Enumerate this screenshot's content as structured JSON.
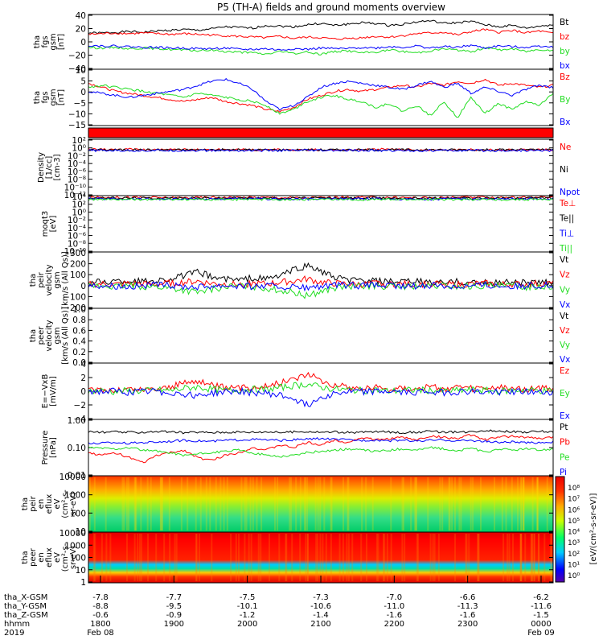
{
  "title": "P5 (TH-A) fields and ground moments overview",
  "colors": {
    "black": "#000000",
    "red": "#ff0000",
    "green": "#22dd22",
    "blue": "#0000ff"
  },
  "chart_data": [
    {
      "type": "line",
      "ylabel": [
        "tha",
        "fgs",
        "gsm",
        "[nT]"
      ],
      "ylim": [
        -40,
        40
      ],
      "yticks": [
        "40",
        "20",
        "0",
        "−20",
        "−40"
      ],
      "series": [
        {
          "name": "Bt",
          "color": "black",
          "values": [
            13,
            13,
            14,
            15,
            14,
            16,
            17,
            18,
            17,
            19,
            22,
            21,
            20,
            24,
            23,
            22,
            25,
            27,
            24,
            26,
            28,
            27,
            24,
            26,
            29,
            31,
            27,
            28,
            30,
            25,
            22,
            24,
            20,
            23,
            25
          ]
        },
        {
          "name": "bz",
          "color": "red",
          "values": [
            11,
            12,
            13,
            12,
            13,
            12,
            11,
            12,
            11,
            10,
            9,
            8,
            7,
            6,
            8,
            5,
            7,
            6,
            4,
            5,
            6,
            8,
            7,
            9,
            12,
            13,
            14,
            10,
            15,
            18,
            14,
            17,
            13,
            16,
            12
          ]
        },
        {
          "name": "by",
          "color": "green",
          "values": [
            -8,
            -9,
            -8,
            -10,
            -9,
            -10,
            -11,
            -12,
            -13,
            -12,
            -14,
            -15,
            -16,
            -18,
            -14,
            -17,
            -15,
            -18,
            -14,
            -13,
            -16,
            -15,
            -12,
            -14,
            -16,
            -13,
            -10,
            -12,
            -15,
            -8,
            -12,
            -10,
            -14,
            -11,
            -12
          ]
        },
        {
          "name": "bx",
          "color": "blue",
          "values": [
            -5,
            -6,
            -6,
            -7,
            -8,
            -8,
            -9,
            -9,
            -10,
            -10,
            -9,
            -11,
            -11,
            -10,
            -12,
            -10,
            -11,
            -9,
            -10,
            -10,
            -8,
            -9,
            -7,
            -8,
            -6,
            -9,
            -7,
            -8,
            -5,
            -9,
            -6,
            -7,
            -8,
            -6,
            -7
          ]
        }
      ]
    },
    {
      "type": "line",
      "ylabel": [
        "tha",
        "fgs",
        "gsm",
        "[nT]"
      ],
      "ylim": [
        -18,
        10
      ],
      "yticks": [
        "10",
        "5",
        "0",
        "−5",
        "−10",
        "−15"
      ],
      "series": [
        {
          "name": "Bz",
          "color": "red",
          "values": [
            3,
            1,
            -1,
            -2,
            -3,
            -4,
            -5,
            -6,
            -5,
            -4,
            -6,
            -7,
            -8,
            -10,
            -11,
            -9,
            -5,
            -3,
            -1,
            0,
            -1,
            0,
            1,
            2,
            1,
            3,
            2,
            4,
            3,
            5,
            2,
            3,
            2,
            1,
            2
          ]
        },
        {
          "name": "By",
          "color": "green",
          "values": [
            1,
            2,
            1,
            0,
            -1,
            -2,
            -3,
            -4,
            -2,
            -3,
            -4,
            -5,
            -6,
            -8,
            -12,
            -10,
            -6,
            -4,
            -3,
            -5,
            -6,
            -9,
            -7,
            -11,
            -8,
            -13,
            -6,
            -14,
            -4,
            -12,
            -7,
            -10,
            -6,
            -8,
            -2
          ]
        },
        {
          "name": "Bx",
          "color": "blue",
          "values": [
            -1,
            -2,
            -3,
            -4,
            -3,
            -2,
            -1,
            0,
            2,
            4,
            5,
            3,
            0,
            -6,
            -10,
            -8,
            -4,
            1,
            3,
            4,
            3,
            2,
            1,
            0,
            2,
            4,
            1,
            3,
            -2,
            1,
            -1,
            -3,
            0,
            2,
            1
          ]
        }
      ]
    },
    {
      "type": "heatmap",
      "ylabel": [],
      "note": "flag bar"
    },
    {
      "type": "line",
      "ylabel": [
        "Density",
        "[1/cc]",
        "[cm-3]"
      ],
      "ylim": [
        -12,
        3
      ],
      "yticks": [
        "10²",
        "10⁰",
        "10⁻²",
        "10⁻⁴",
        "10⁻⁶",
        "10⁻⁸",
        "10⁻¹⁰",
        "10⁻¹²"
      ],
      "series": [
        {
          "name": "Ne",
          "color": "red",
          "values": [
            0.3,
            0.3,
            0.2,
            0.3,
            0.2,
            0.2,
            0.2,
            0.3,
            0.2,
            0.2,
            0.2,
            0.2
          ]
        },
        {
          "name": "Ni",
          "color": "black",
          "values": [
            0.2,
            0.2,
            0.2,
            0.2,
            0.2,
            0.2,
            0.2,
            0.2,
            0.2,
            0.2,
            0.2,
            0.2
          ]
        },
        {
          "name": "Npot",
          "color": "blue",
          "values": [
            0,
            0,
            0,
            0,
            0,
            0,
            0,
            0,
            0,
            0,
            0,
            0
          ]
        }
      ]
    },
    {
      "type": "line",
      "ylabel": [
        "moqt3",
        "[eV]"
      ],
      "ylim": [
        -12,
        4
      ],
      "yticks": [
        "10⁴",
        "10²",
        "10⁰",
        "10⁻²",
        "10⁻⁴",
        "10⁻⁶",
        "10⁻⁸",
        "10⁻¹⁰"
      ],
      "series": [
        {
          "name": "Te⊥",
          "color": "red",
          "values": [
            3.5,
            3.5,
            3.4,
            3.5,
            3.5,
            3.4,
            3.5,
            3.5,
            3.4,
            3.5,
            3.5,
            3.5
          ]
        },
        {
          "name": "Te||",
          "color": "black",
          "values": [
            3.3,
            3.3,
            3.3,
            3.3,
            3.3,
            3.3,
            3.3,
            3.3,
            3.3,
            3.3,
            3.3,
            3.3
          ]
        },
        {
          "name": "Ti⊥",
          "color": "blue",
          "values": [
            3.1,
            3.1,
            3.0,
            3.1,
            3.1,
            3.0,
            3.1,
            3.1,
            3.0,
            3.1,
            3.1,
            3.1
          ]
        },
        {
          "name": "Ti||",
          "color": "green",
          "values": [
            2.9,
            2.9,
            2.9,
            2.9,
            2.9,
            2.9,
            2.9,
            2.9,
            2.9,
            2.9,
            2.9,
            2.9
          ]
        }
      ]
    },
    {
      "type": "line",
      "ylabel": [
        "tha",
        "peir",
        "velocity",
        "gsm",
        "[km/s (All Qs)]"
      ],
      "ylim": [
        -200,
        300
      ],
      "yticks": [
        "300",
        "200",
        "100",
        "0",
        "−100",
        "−200"
      ],
      "series": [
        {
          "name": "Vt",
          "color": "black",
          "values": [
            30,
            35,
            40,
            45,
            40,
            50,
            60,
            90,
            120,
            80,
            60,
            50,
            70,
            60,
            90,
            140,
            180,
            130,
            70,
            50,
            45,
            40,
            35,
            30,
            40,
            30,
            25,
            35,
            30,
            25,
            30,
            35,
            30,
            25,
            30
          ]
        },
        {
          "name": "Vz",
          "color": "red",
          "values": [
            10,
            15,
            10,
            20,
            15,
            10,
            25,
            30,
            40,
            20,
            15,
            10,
            20,
            15,
            30,
            40,
            60,
            30,
            20,
            15,
            10,
            20,
            10,
            15,
            10,
            20,
            15,
            10,
            15,
            20,
            10,
            15,
            10,
            20,
            15
          ]
        },
        {
          "name": "Vy",
          "color": "green",
          "values": [
            -5,
            0,
            -10,
            0,
            -5,
            -10,
            -20,
            -40,
            -60,
            -30,
            -10,
            0,
            -10,
            -20,
            -40,
            -60,
            -90,
            -50,
            -20,
            -10,
            -5,
            0,
            -5,
            -10,
            0,
            -5,
            0,
            -10,
            -5,
            0,
            -5,
            0,
            -10,
            -5,
            0
          ]
        },
        {
          "name": "Vx",
          "color": "blue",
          "values": [
            0,
            5,
            0,
            -5,
            0,
            5,
            0,
            -5,
            -10,
            0,
            5,
            0,
            -5,
            0,
            -10,
            -15,
            -20,
            -10,
            0,
            5,
            0,
            5,
            0,
            -5,
            0,
            5,
            0,
            -5,
            0,
            5,
            0,
            -5,
            0,
            5,
            0
          ]
        }
      ]
    },
    {
      "type": "line",
      "ylabel": [
        "tha",
        "peer",
        "velocity",
        "gsm",
        "[km/s (All Qs)]"
      ],
      "ylim": [
        0,
        1
      ],
      "yticks": [
        "1.0",
        "0.8",
        "0.6",
        "0.4",
        "0.2",
        "0.0"
      ],
      "series": [
        {
          "name": "Vt",
          "color": "black",
          "values": []
        },
        {
          "name": "Vz",
          "color": "red",
          "values": []
        },
        {
          "name": "Vy",
          "color": "green",
          "values": []
        },
        {
          "name": "Vx",
          "color": "blue",
          "values": []
        }
      ]
    },
    {
      "type": "line",
      "ylabel": [
        "E=−VxB",
        "[mV/m]"
      ],
      "ylim": [
        -4,
        4
      ],
      "yticks": [
        "4",
        "2",
        "0",
        "−2",
        "−4"
      ],
      "series": [
        {
          "name": "Ez",
          "color": "red",
          "values": [
            0,
            0.2,
            0.1,
            0.3,
            0.2,
            0.4,
            0.6,
            1.2,
            1.5,
            0.8,
            0.5,
            0.4,
            0.6,
            0.8,
            1.2,
            1.8,
            2.5,
            1.6,
            0.9,
            0.6,
            0.4,
            0.6,
            0.3,
            0.5,
            0.4,
            0.6,
            0.3,
            0.5,
            0.4,
            0.3,
            0.5,
            0.4,
            0.3,
            0.4,
            0.3
          ]
        },
        {
          "name": "Ey",
          "color": "green",
          "values": [
            0,
            0.1,
            -0.1,
            0.1,
            0,
            0.2,
            0.1,
            0.4,
            0.6,
            0.3,
            0.1,
            0.2,
            0.3,
            0.2,
            0.5,
            0.8,
            1,
            0.6,
            0.3,
            0.2,
            0.1,
            0.2,
            0,
            0.1,
            0.2,
            0.1,
            0,
            0.1,
            0.2,
            0.1,
            0,
            0.1,
            0.2,
            0.1,
            0
          ]
        },
        {
          "name": "Ex",
          "color": "blue",
          "values": [
            0,
            -0.1,
            0,
            -0.2,
            -0.1,
            0,
            -0.2,
            -0.4,
            -0.6,
            -0.3,
            -0.1,
            0,
            -0.2,
            -0.3,
            -0.6,
            -1,
            -2,
            -0.8,
            -0.3,
            -0.1,
            0,
            -0.1,
            0,
            -0.2,
            -0.1,
            0,
            -0.2,
            -0.1,
            0,
            -0.2,
            -0.1,
            0,
            -0.1,
            -0.2,
            -0.1
          ]
        }
      ]
    },
    {
      "type": "line",
      "ylabel": [
        "Pressure",
        "[nPa]"
      ],
      "log": true,
      "ylim": [
        -2,
        0.2
      ],
      "yticks": [
        "1.00",
        "0.10",
        "0.01"
      ],
      "series": [
        {
          "name": "Pt",
          "color": "black",
          "values": [
            -0.28,
            -0.3,
            -0.29,
            -0.31,
            -0.3,
            -0.27,
            -0.29,
            -0.32,
            -0.3,
            -0.31,
            -0.3,
            -0.29,
            -0.3,
            -0.28,
            -0.31,
            -0.29,
            -0.27,
            -0.3,
            -0.29,
            -0.31,
            -0.3,
            -0.28,
            -0.29,
            -0.32,
            -0.3,
            -0.27,
            -0.29,
            -0.3,
            -0.28,
            -0.22,
            -0.25,
            -0.28,
            -0.3,
            -0.27,
            -0.29
          ]
        },
        {
          "name": "Pb",
          "color": "red",
          "values": [
            -1.1,
            -1.2,
            -1.1,
            -1.3,
            -1.5,
            -1.2,
            -1.1,
            -1.0,
            -1.3,
            -1.4,
            -1.2,
            -1.1,
            -0.9,
            -1.0,
            -0.8,
            -0.9,
            -0.7,
            -0.8,
            -0.6,
            -0.7,
            -0.5,
            -0.6,
            -0.55,
            -0.5,
            -0.6,
            -0.45,
            -0.5,
            -0.55,
            -0.4,
            -0.6,
            -0.5,
            -0.45,
            -0.5,
            -0.55,
            -0.5
          ]
        },
        {
          "name": "Pe",
          "color": "green",
          "values": [
            -0.9,
            -0.92,
            -0.95,
            -0.9,
            -1.0,
            -1.05,
            -1.1,
            -1.2,
            -1.15,
            -1.1,
            -1.05,
            -1.0,
            -1.1,
            -1.2,
            -1.25,
            -1.2,
            -1.1,
            -1.05,
            -1.0,
            -0.95,
            -1.0,
            -1.05,
            -1.0,
            -0.95,
            -1.0,
            -0.9,
            -0.95,
            -1.05,
            -0.9,
            -1.1,
            -0.95,
            -1.0,
            -0.95,
            -1.0,
            -0.95
          ]
        },
        {
          "name": "Pi",
          "color": "blue",
          "values": [
            -0.75,
            -0.72,
            -0.7,
            -0.73,
            -0.7,
            -0.68,
            -0.65,
            -0.62,
            -0.64,
            -0.66,
            -0.62,
            -0.6,
            -0.58,
            -0.6,
            -0.62,
            -0.6,
            -0.57,
            -0.55,
            -0.58,
            -0.6,
            -0.62,
            -0.6,
            -0.63,
            -0.6,
            -0.65,
            -0.62,
            -0.6,
            -0.64,
            -0.62,
            -0.66,
            -0.7,
            -0.68,
            -0.72,
            -0.7,
            -0.68
          ]
        }
      ]
    },
    {
      "type": "heatmap",
      "ylabel": [
        "tha",
        "peir",
        "en",
        "eflux",
        "eV",
        "(cm²-s-",
        "sr-eV)"
      ],
      "ylim": [
        1,
        4.3
      ],
      "yticks": [
        "10000",
        "1000",
        "100",
        "10"
      ]
    },
    {
      "type": "heatmap",
      "ylabel": [
        "tha",
        "peer",
        "en",
        "eflux",
        "eV",
        "(cm²-s-",
        "sr-eV)"
      ],
      "ylim": [
        0,
        4.3
      ],
      "yticks": [
        "10000",
        "1000",
        "100",
        "10",
        "1"
      ]
    }
  ],
  "colorbar": {
    "label": "[eV/(cm²-s-sr-eV)]",
    "ticks": [
      "10⁸",
      "10⁷",
      "10⁶",
      "10⁵",
      "10⁴",
      "10³",
      "10²",
      "10¹",
      "10⁰"
    ]
  },
  "xaxis": {
    "rows": [
      {
        "label": "tha_X-GSM",
        "values": [
          "-7.8",
          "-7.7",
          "-7.5",
          "-7.3",
          "-7.0",
          "-6.6",
          "-6.2"
        ]
      },
      {
        "label": "tha_Y-GSM",
        "values": [
          "-8.8",
          "-9.5",
          "-10.1",
          "-10.6",
          "-11.0",
          "-11.3",
          "-11.6"
        ]
      },
      {
        "label": "tha_Z-GSM",
        "values": [
          "-0.6",
          "-0.9",
          "-1.2",
          "-1.4",
          "-1.6",
          "-1.6",
          "-1.5"
        ]
      },
      {
        "label": "hhmm",
        "values": [
          "1800",
          "1900",
          "2000",
          "2100",
          "2200",
          "2300",
          "0000"
        ]
      },
      {
        "label": "2019",
        "values": [
          "Feb 08",
          "",
          "",
          "",
          "",
          "",
          "Feb 09"
        ]
      }
    ]
  }
}
